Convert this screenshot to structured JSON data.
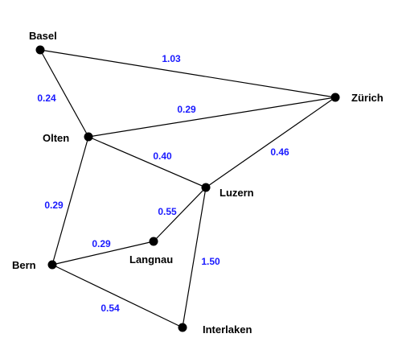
{
  "graph": {
    "edge_label_color": "#1a1aff",
    "node_color": "#000000",
    "edge_color": "#000000",
    "nodes": [
      {
        "id": "basel",
        "label": "Basel"
      },
      {
        "id": "olten",
        "label": "Olten"
      },
      {
        "id": "zurich",
        "label": "Zürich"
      },
      {
        "id": "luzern",
        "label": "Luzern"
      },
      {
        "id": "bern",
        "label": "Bern"
      },
      {
        "id": "langnau",
        "label": "Langnau"
      },
      {
        "id": "interlaken",
        "label": "Interlaken"
      }
    ],
    "edges": [
      {
        "from": "basel",
        "to": "zurich",
        "label": "1.03"
      },
      {
        "from": "basel",
        "to": "olten",
        "label": "0.24"
      },
      {
        "from": "olten",
        "to": "zurich",
        "label": "0.29"
      },
      {
        "from": "olten",
        "to": "luzern",
        "label": "0.40"
      },
      {
        "from": "zurich",
        "to": "luzern",
        "label": "0.46"
      },
      {
        "from": "olten",
        "to": "bern",
        "label": "0.29"
      },
      {
        "from": "luzern",
        "to": "langnau",
        "label": "0.55"
      },
      {
        "from": "bern",
        "to": "langnau",
        "label": "0.29"
      },
      {
        "from": "luzern",
        "to": "interlaken",
        "label": "1.50"
      },
      {
        "from": "bern",
        "to": "interlaken",
        "label": "0.54"
      }
    ]
  }
}
